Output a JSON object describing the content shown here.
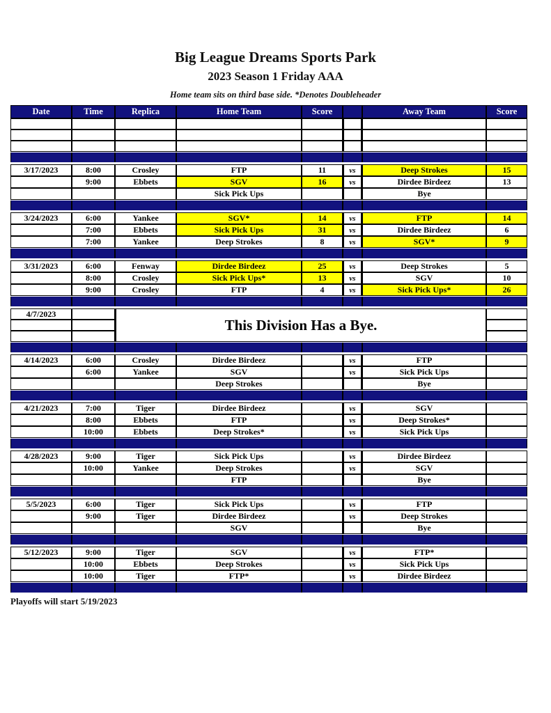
{
  "title": "Big League Dreams Sports Park",
  "subtitle": "2023 Season 1 Friday AAA",
  "note": "Home team sits on third base side.  *Denotes Doubleheader",
  "footer": "Playoffs will start 5/19/2023",
  "colors": {
    "navy": "#12127e",
    "highlight": "#ffff00",
    "border": "#000000"
  },
  "table": {
    "headers": [
      "Date",
      "Time",
      "Replica",
      "Home Team",
      "Score",
      "",
      "Away Team",
      "Score"
    ],
    "blank_rows": 3,
    "blocks": [
      {
        "type": "games",
        "rows": [
          {
            "date": "3/17/2023",
            "time": "8:00",
            "replica": "Crosley",
            "home": "FTP",
            "home_score": "11",
            "vs": "vs",
            "away": "Deep Strokes",
            "away_score": "15",
            "home_hl": false,
            "away_hl": true
          },
          {
            "date": "",
            "time": "9:00",
            "replica": "Ebbets",
            "home": "SGV",
            "home_score": "16",
            "vs": "vs",
            "away": "Dirdee Birdeez",
            "away_score": "13",
            "home_hl": true,
            "away_hl": false
          },
          {
            "date": "",
            "time": "",
            "replica": "",
            "home": "Sick Pick Ups",
            "home_score": "",
            "vs": "",
            "away": "Bye",
            "away_score": "",
            "home_hl": false,
            "away_hl": false
          }
        ]
      },
      {
        "type": "games",
        "rows": [
          {
            "date": "3/24/2023",
            "time": "6:00",
            "replica": "Yankee",
            "home": "SGV*",
            "home_score": "14",
            "vs": "vs",
            "away": "FTP",
            "away_score": "14",
            "home_hl": true,
            "away_hl": true
          },
          {
            "date": "",
            "time": "7:00",
            "replica": "Ebbets",
            "home": "Sick Pick Ups",
            "home_score": "31",
            "vs": "vs",
            "away": "Dirdee Birdeez",
            "away_score": "6",
            "home_hl": true,
            "away_hl": false
          },
          {
            "date": "",
            "time": "7:00",
            "replica": "Yankee",
            "home": "Deep Strokes",
            "home_score": "8",
            "vs": "vs",
            "away": "SGV*",
            "away_score": "9",
            "home_hl": false,
            "away_hl": true
          }
        ]
      },
      {
        "type": "games",
        "rows": [
          {
            "date": "3/31/2023",
            "time": "6:00",
            "replica": "Fenway",
            "home": "Dirdee Birdeez",
            "home_score": "25",
            "vs": "vs",
            "away": "Deep Strokes",
            "away_score": "5",
            "home_hl": true,
            "away_hl": false
          },
          {
            "date": "",
            "time": "8:00",
            "replica": "Crosley",
            "home": "Sick Pick Ups*",
            "home_score": "13",
            "vs": "vs",
            "away": "SGV",
            "away_score": "10",
            "home_hl": true,
            "away_hl": false
          },
          {
            "date": "",
            "time": "9:00",
            "replica": "Crosley",
            "home": "FTP",
            "home_score": "4",
            "vs": "vs",
            "away": "Sick Pick Ups*",
            "away_score": "26",
            "home_hl": false,
            "away_hl": true
          }
        ]
      },
      {
        "type": "bye",
        "date": "4/7/2023",
        "message": "This Division Has a Bye."
      },
      {
        "type": "games",
        "rows": [
          {
            "date": "4/14/2023",
            "time": "6:00",
            "replica": "Crosley",
            "home": "Dirdee Birdeez",
            "home_score": "",
            "vs": "vs",
            "away": "FTP",
            "away_score": "",
            "home_hl": false,
            "away_hl": false
          },
          {
            "date": "",
            "time": "6:00",
            "replica": "Yankee",
            "home": "SGV",
            "home_score": "",
            "vs": "vs",
            "away": "Sick Pick Ups",
            "away_score": "",
            "home_hl": false,
            "away_hl": false
          },
          {
            "date": "",
            "time": "",
            "replica": "",
            "home": "Deep Strokes",
            "home_score": "",
            "vs": "",
            "away": "Bye",
            "away_score": "",
            "home_hl": false,
            "away_hl": false
          }
        ]
      },
      {
        "type": "games",
        "rows": [
          {
            "date": "4/21/2023",
            "time": "7:00",
            "replica": "Tiger",
            "home": "Dirdee Birdeez",
            "home_score": "",
            "vs": "vs",
            "away": "SGV",
            "away_score": "",
            "home_hl": false,
            "away_hl": false
          },
          {
            "date": "",
            "time": "8:00",
            "replica": "Ebbets",
            "home": "FTP",
            "home_score": "",
            "vs": "vs",
            "away": "Deep Strokes*",
            "away_score": "",
            "home_hl": false,
            "away_hl": false
          },
          {
            "date": "",
            "time": "10:00",
            "replica": "Ebbets",
            "home": "Deep Strokes*",
            "home_score": "",
            "vs": "vs",
            "away": "Sick Pick Ups",
            "away_score": "",
            "home_hl": false,
            "away_hl": false
          }
        ]
      },
      {
        "type": "games",
        "rows": [
          {
            "date": "4/28/2023",
            "time": "9:00",
            "replica": "Tiger",
            "home": "Sick Pick Ups",
            "home_score": "",
            "vs": "vs",
            "away": "Dirdee Birdeez",
            "away_score": "",
            "home_hl": false,
            "away_hl": false
          },
          {
            "date": "",
            "time": "10:00",
            "replica": "Yankee",
            "home": "Deep Strokes",
            "home_score": "",
            "vs": "vs",
            "away": "SGV",
            "away_score": "",
            "home_hl": false,
            "away_hl": false
          },
          {
            "date": "",
            "time": "",
            "replica": "",
            "home": "FTP",
            "home_score": "",
            "vs": "",
            "away": "Bye",
            "away_score": "",
            "home_hl": false,
            "away_hl": false
          }
        ]
      },
      {
        "type": "games",
        "rows": [
          {
            "date": "5/5/2023",
            "time": "6:00",
            "replica": "Tiger",
            "home": "Sick Pick Ups",
            "home_score": "",
            "vs": "vs",
            "away": "FTP",
            "away_score": "",
            "home_hl": false,
            "away_hl": false
          },
          {
            "date": "",
            "time": "9:00",
            "replica": "Tiger",
            "home": "Dirdee Birdeez",
            "home_score": "",
            "vs": "vs",
            "away": "Deep Strokes",
            "away_score": "",
            "home_hl": false,
            "away_hl": false
          },
          {
            "date": "",
            "time": "",
            "replica": "",
            "home": "SGV",
            "home_score": "",
            "vs": "",
            "away": "Bye",
            "away_score": "",
            "home_hl": false,
            "away_hl": false
          }
        ]
      },
      {
        "type": "games",
        "rows": [
          {
            "date": "5/12/2023",
            "time": "9:00",
            "replica": "Tiger",
            "home": "SGV",
            "home_score": "",
            "vs": "vs",
            "away": "FTP*",
            "away_score": "",
            "home_hl": false,
            "away_hl": false
          },
          {
            "date": "",
            "time": "10:00",
            "replica": "Ebbets",
            "home": "Deep Strokes",
            "home_score": "",
            "vs": "vs",
            "away": "Sick Pick Ups",
            "away_score": "",
            "home_hl": false,
            "away_hl": false
          },
          {
            "date": "",
            "time": "10:00",
            "replica": "Tiger",
            "home": "FTP*",
            "home_score": "",
            "vs": "vs",
            "away": "Dirdee Birdeez",
            "away_score": "",
            "home_hl": false,
            "away_hl": false
          }
        ]
      }
    ]
  }
}
